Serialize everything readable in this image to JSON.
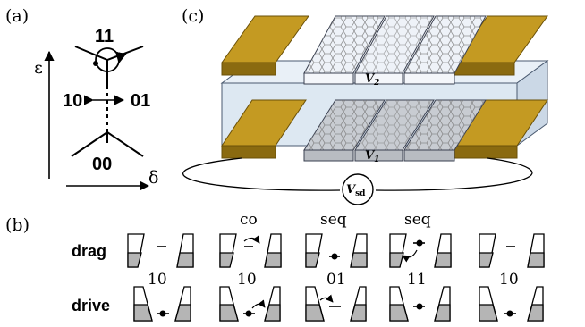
{
  "colors": {
    "gold": "#c49a22",
    "gold_dark": "#8a6a10",
    "glass": "#dde8f2",
    "glass_edge": "#5a6a80",
    "gray_fill": "#b5b5b5",
    "graphene": "#7a7a7a"
  },
  "panel_a": {
    "label": "(a)",
    "state_11": "11",
    "state_10": "10",
    "state_01": "01",
    "state_00": "00",
    "axis_y": "ε",
    "axis_x": "δ"
  },
  "panel_b": {
    "label": "(b)",
    "row_drag": "drag",
    "row_drive": "drive",
    "col_labels_top": [
      "",
      "co",
      "seq",
      "seq",
      ""
    ],
    "mid_labels": [
      "10",
      "10",
      "01",
      "11",
      "10"
    ]
  },
  "panel_c": {
    "label": "(c)",
    "v2_label": "V",
    "v2_sub": "2",
    "v1_label": "V",
    "v1_sub": "1",
    "vsd_label": "V",
    "vsd_sub": "sd"
  }
}
